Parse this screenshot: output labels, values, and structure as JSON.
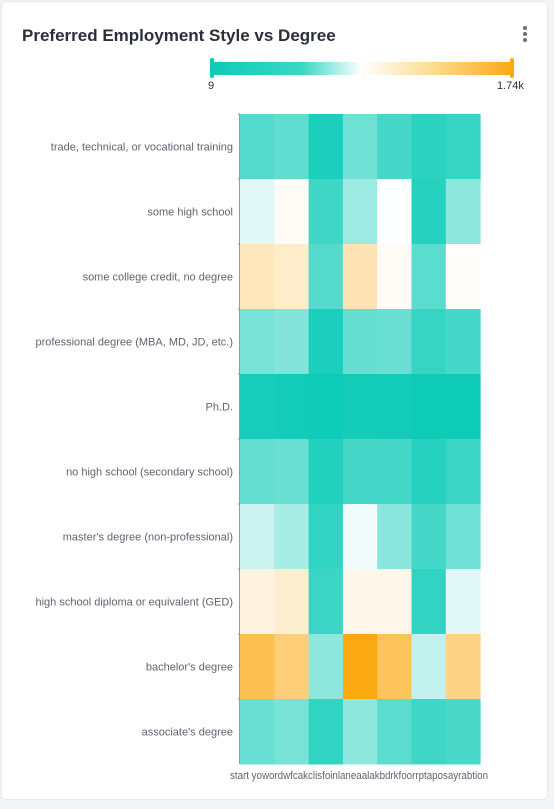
{
  "card": {
    "title": "Preferred Employment Style vs Degree"
  },
  "legend": {
    "min_label": "9",
    "max_label": "1.74k",
    "min_color": "#0ccbb7",
    "mid_color": "#ffffff",
    "max_color": "#fba911"
  },
  "chart_data": {
    "type": "heatmap",
    "title": "Preferred Employment Style vs Degree",
    "x_categories": [
      "start your own business",
      "work for a large company",
      "work for the government",
      "freelance",
      "work for a nonprofit",
      "work for a startup",
      "work for a small company"
    ],
    "x_tick_text": "start yowordwfcakclisfoinlaneaalakbdrkfoorrptaposayrabtion",
    "y_categories": [
      "trade, technical, or vocational training",
      "some high school",
      "some college credit, no degree",
      "professional degree (MBA, MD, JD, etc.)",
      "Ph.D.",
      "no high school (secondary school)",
      "master's degree (non-professional)",
      "high school diploma or equivalent (GED)",
      "bachelor's degree",
      "associate's degree"
    ],
    "values": [
      [
        150,
        170,
        40,
        200,
        120,
        70,
        90
      ],
      [
        420,
        520,
        110,
        290,
        480,
        60,
        260
      ],
      [
        830,
        760,
        150,
        870,
        520,
        160,
        510
      ],
      [
        220,
        240,
        40,
        180,
        190,
        90,
        120
      ],
      [
        30,
        20,
        15,
        25,
        20,
        10,
        12
      ],
      [
        180,
        190,
        50,
        120,
        120,
        60,
        100
      ],
      [
        380,
        310,
        80,
        450,
        250,
        120,
        200
      ],
      [
        640,
        730,
        100,
        600,
        600,
        80,
        420
      ],
      [
        1400,
        1200,
        260,
        1740,
        1350,
        360,
        1120
      ],
      [
        190,
        220,
        80,
        260,
        160,
        110,
        130
      ]
    ],
    "min": 9,
    "max": 1740
  }
}
